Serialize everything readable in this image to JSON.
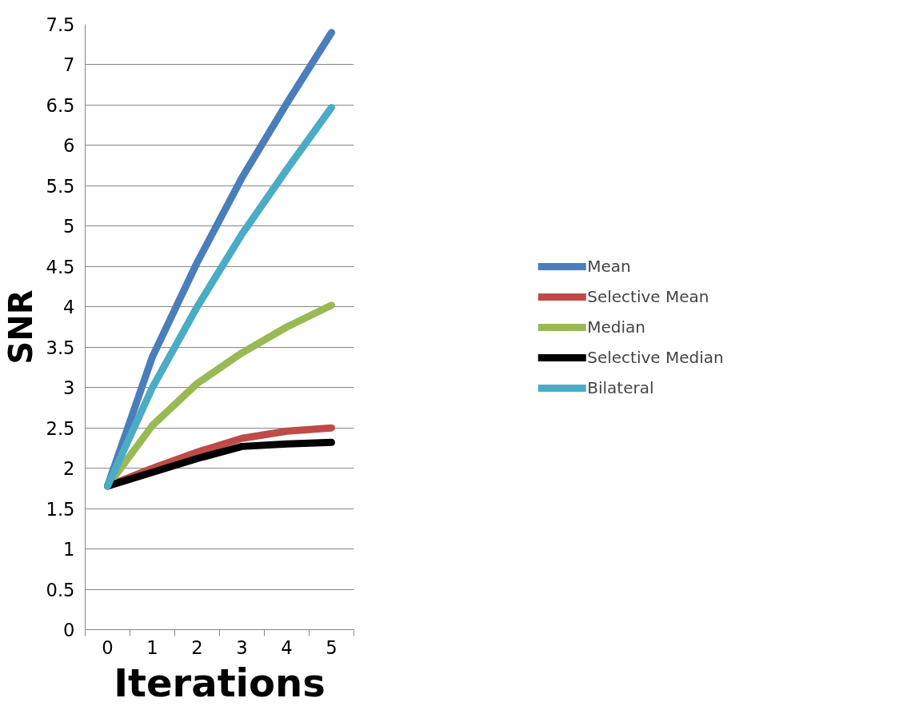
{
  "chart_data": {
    "type": "line",
    "xlabel": "Iterations",
    "ylabel": "SNR",
    "categories": [
      "0",
      "1",
      "2",
      "3",
      "4",
      "5"
    ],
    "series": [
      {
        "name": "Mean",
        "color": "#4a7ebb",
        "values": [
          1.78,
          3.38,
          4.55,
          5.6,
          6.52,
          7.4
        ]
      },
      {
        "name": "Selective Mean",
        "color": "#be4b48",
        "values": [
          1.78,
          2.0,
          2.2,
          2.37,
          2.46,
          2.5
        ]
      },
      {
        "name": "Median",
        "color": "#98b954",
        "values": [
          1.78,
          2.53,
          3.05,
          3.43,
          3.75,
          4.02
        ]
      },
      {
        "name": "Selective Median",
        "color": "#000000",
        "values": [
          1.78,
          1.95,
          2.12,
          2.27,
          2.3,
          2.32
        ]
      },
      {
        "name": "Bilateral",
        "color": "#4bacc6",
        "values": [
          1.78,
          3.0,
          4.0,
          4.9,
          5.7,
          6.47
        ]
      }
    ],
    "ylim": [
      0,
      7.5
    ],
    "yticks": [
      0,
      0.5,
      1,
      1.5,
      2,
      2.5,
      3,
      3.5,
      4,
      4.5,
      5,
      5.5,
      6,
      6.5,
      7,
      7.5
    ],
    "grid": "y",
    "legend": "right",
    "marker": "none",
    "line_style": "solid"
  }
}
